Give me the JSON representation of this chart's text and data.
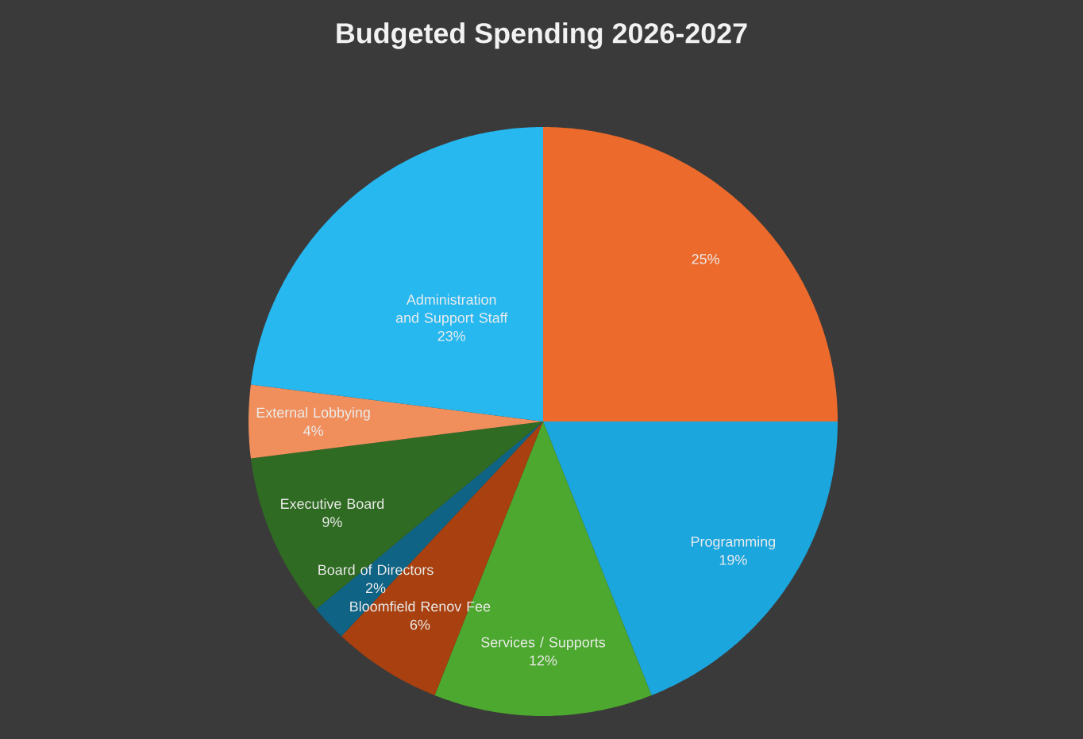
{
  "chart_data": {
    "type": "pie",
    "title": "Budgeted Spending 2026-2027",
    "categories": [
      null,
      "Programming",
      "Services / Supports",
      "Bloomfield Renov Fee",
      "Board of Directors",
      "Executive Board",
      "External Lobbying",
      "Administration and Support Staff"
    ],
    "values": [
      25,
      19,
      12,
      6,
      2,
      9,
      4,
      23
    ],
    "value_labels": [
      "25%",
      "19%",
      "12%",
      "6%",
      "2%",
      "9%",
      "4%",
      "23%"
    ],
    "colors": [
      "#ec6a2c",
      "#1ca6de",
      "#4ca82e",
      "#a8400f",
      "#0f6384",
      "#2f6b22",
      "#f08f5c",
      "#27b8f0"
    ]
  }
}
